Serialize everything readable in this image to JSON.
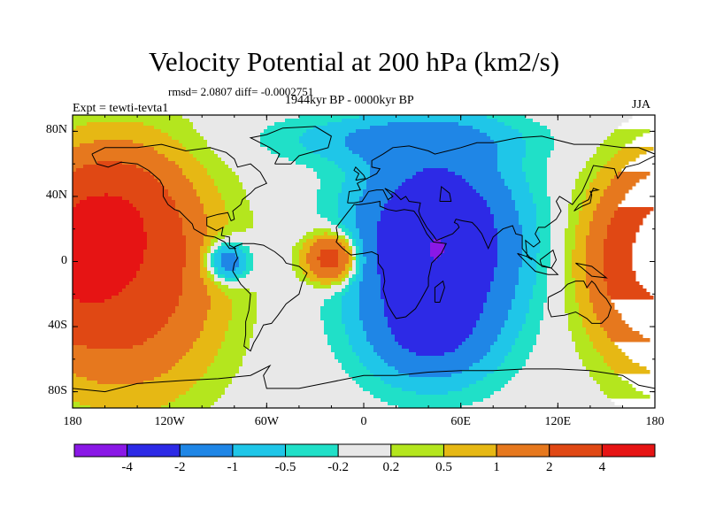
{
  "map": {
    "title": "Velocity Potential at 200 hPa (km2/s)",
    "stats": "rmsd= 2.0807 diff= -0.0002751",
    "subtitle": "1944kyr BP - 0000kyr BP",
    "experiment": "Expt = tewti-tevta1",
    "season": "JJA",
    "projection": "cylindrical equidistant",
    "lon_range": [
      -180,
      180
    ],
    "lat_range": [
      -90,
      90
    ]
  },
  "axes": {
    "x_ticks": [
      {
        "lon": -180,
        "label": "180"
      },
      {
        "lon": -120,
        "label": "120W"
      },
      {
        "lon": -60,
        "label": "60W"
      },
      {
        "lon": 0,
        "label": "0"
      },
      {
        "lon": 60,
        "label": "60E"
      },
      {
        "lon": 120,
        "label": "120E"
      },
      {
        "lon": 180,
        "label": "180"
      }
    ],
    "y_ticks": [
      {
        "lat": 80,
        "label": "80N"
      },
      {
        "lat": 40,
        "label": "40N"
      },
      {
        "lat": 0,
        "label": "0"
      },
      {
        "lat": -40,
        "label": "40S"
      },
      {
        "lat": -80,
        "label": "80S"
      }
    ]
  },
  "colorbar": {
    "colors": [
      "#8a18e6",
      "#2d2ae6",
      "#1f86e6",
      "#1fc6e8",
      "#20e0c8",
      "#e8e8e8",
      "#b4e61e",
      "#e6b814",
      "#e6781e",
      "#e04814",
      "#e61414"
    ],
    "boundaries": [
      {
        "value": -4,
        "label": "-4"
      },
      {
        "value": -2,
        "label": "-2"
      },
      {
        "value": -1,
        "label": "-1"
      },
      {
        "value": -0.5,
        "label": "-0.5"
      },
      {
        "value": -0.2,
        "label": "-0.2"
      },
      {
        "value": 0.2,
        "label": "0.2"
      },
      {
        "value": 0.5,
        "label": "0.5"
      },
      {
        "value": 1,
        "label": "1"
      },
      {
        "value": 2,
        "label": "2"
      },
      {
        "value": 4,
        "label": "4"
      }
    ]
  },
  "field_features": [
    {
      "name": "east-pacific-high",
      "lon": -145,
      "lat": -8,
      "value": 3.0,
      "sx": 35,
      "sy": 45
    },
    {
      "name": "north-pacific-high",
      "lon": -155,
      "lat": 30,
      "value": 2.0,
      "sx": 25,
      "sy": 25
    },
    {
      "name": "central-american-low",
      "lon": -85,
      "lat": 0,
      "value": -2.0,
      "sx": 10,
      "sy": 9
    },
    {
      "name": "atlantic-high",
      "lon": -20,
      "lat": 2,
      "value": 3.0,
      "sx": 11,
      "sy": 10
    },
    {
      "name": "africa-asia-low",
      "lon": 45,
      "lat": 10,
      "value": -4.0,
      "sx": 32,
      "sy": 38
    },
    {
      "name": "southern-ocean-low",
      "lon": 40,
      "lat": -45,
      "value": -1.5,
      "sx": 25,
      "sy": 20
    },
    {
      "name": "west-pacific-high",
      "lon": 175,
      "lat": 0,
      "value": 2.8,
      "sx": 24,
      "sy": 32
    },
    {
      "name": "arctic-low",
      "lon": 20,
      "lat": 75,
      "value": -1.0,
      "sx": 50,
      "sy": 10
    }
  ]
}
